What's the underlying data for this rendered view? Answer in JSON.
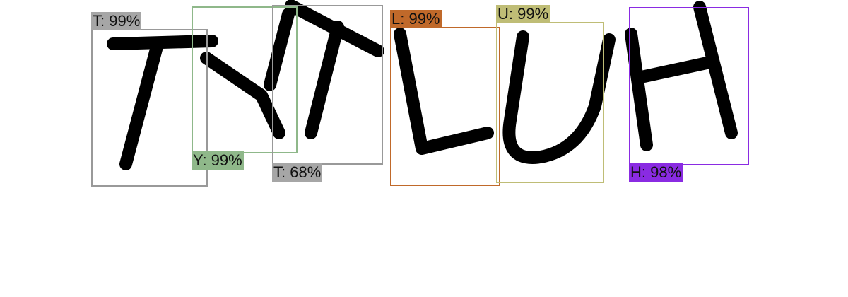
{
  "detections": [
    {
      "label": "T: 99%",
      "color": "#a6a6a6"
    },
    {
      "label": "Y: 99%",
      "color": "#8fb88a"
    },
    {
      "label": "T: 68%",
      "color": "#a6a6a6"
    },
    {
      "label": "L: 99%",
      "color": "#c0692a"
    },
    {
      "label": "U: 99%",
      "color": "#bfbd76"
    },
    {
      "label": "H: 98%",
      "color": "#8a2be2"
    }
  ]
}
